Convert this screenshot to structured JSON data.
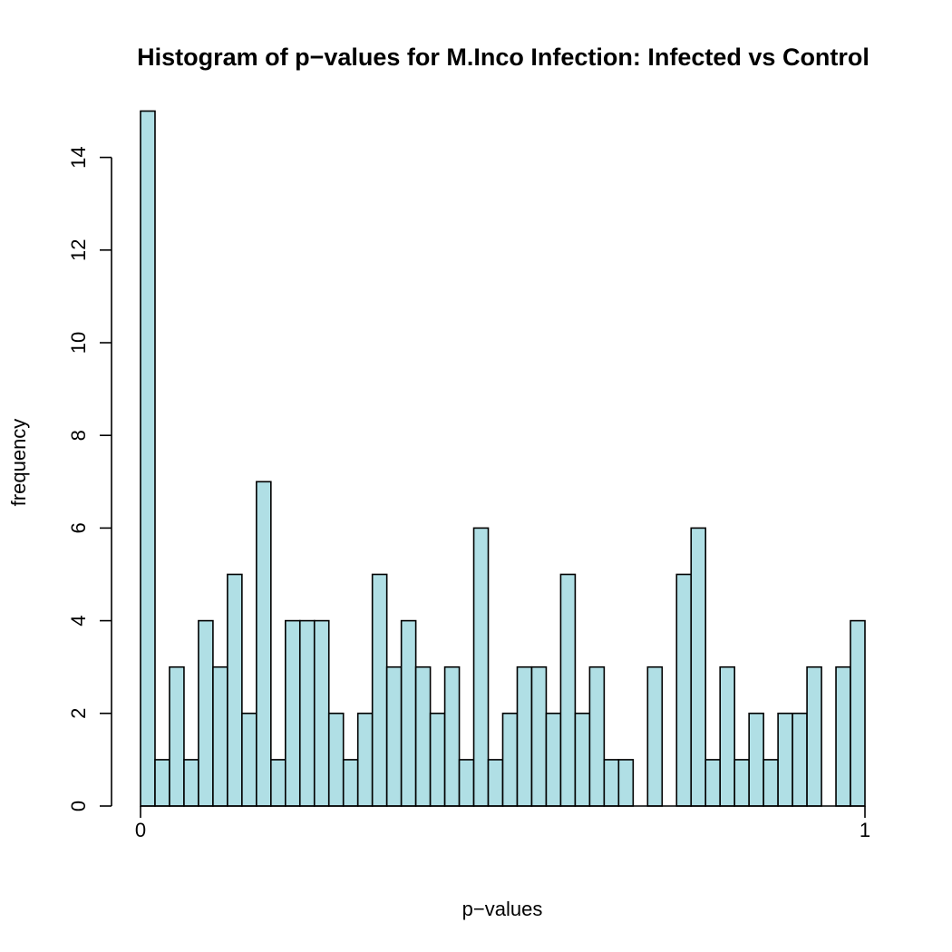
{
  "chart_data": {
    "type": "bar",
    "title": "Histogram of p−values for   M.Inco Infection: Infected vs Control",
    "xlabel": "p−values",
    "ylabel": "frequency",
    "x_ticks": [
      "0",
      "1"
    ],
    "xlim": [
      0,
      1
    ],
    "ylim": [
      0,
      15
    ],
    "y_ticks": [
      0,
      2,
      4,
      6,
      8,
      10,
      12,
      14
    ],
    "bin_width": 0.02,
    "bin_starts": [
      0.0,
      0.02,
      0.04,
      0.06,
      0.08,
      0.1,
      0.12,
      0.14,
      0.16,
      0.18,
      0.2,
      0.22,
      0.24,
      0.26,
      0.28,
      0.3,
      0.32,
      0.34,
      0.36,
      0.38,
      0.4,
      0.42,
      0.44,
      0.46,
      0.48,
      0.5,
      0.52,
      0.54,
      0.56,
      0.58,
      0.6,
      0.62,
      0.64,
      0.66,
      0.68,
      0.7,
      0.72,
      0.74,
      0.76,
      0.78,
      0.8,
      0.82,
      0.84,
      0.86,
      0.88,
      0.9,
      0.92,
      0.94,
      0.96,
      0.98
    ],
    "values": [
      15,
      1,
      3,
      1,
      4,
      3,
      5,
      2,
      7,
      1,
      4,
      4,
      4,
      2,
      1,
      2,
      5,
      3,
      4,
      3,
      2,
      3,
      1,
      6,
      1,
      2,
      3,
      3,
      2,
      5,
      2,
      3,
      1,
      1,
      0,
      3,
      0,
      5,
      6,
      1,
      3,
      1,
      2,
      1,
      2,
      2,
      3,
      0,
      3,
      4
    ],
    "bar_color": "#b0dfe5",
    "grid": false,
    "legend": "none"
  }
}
